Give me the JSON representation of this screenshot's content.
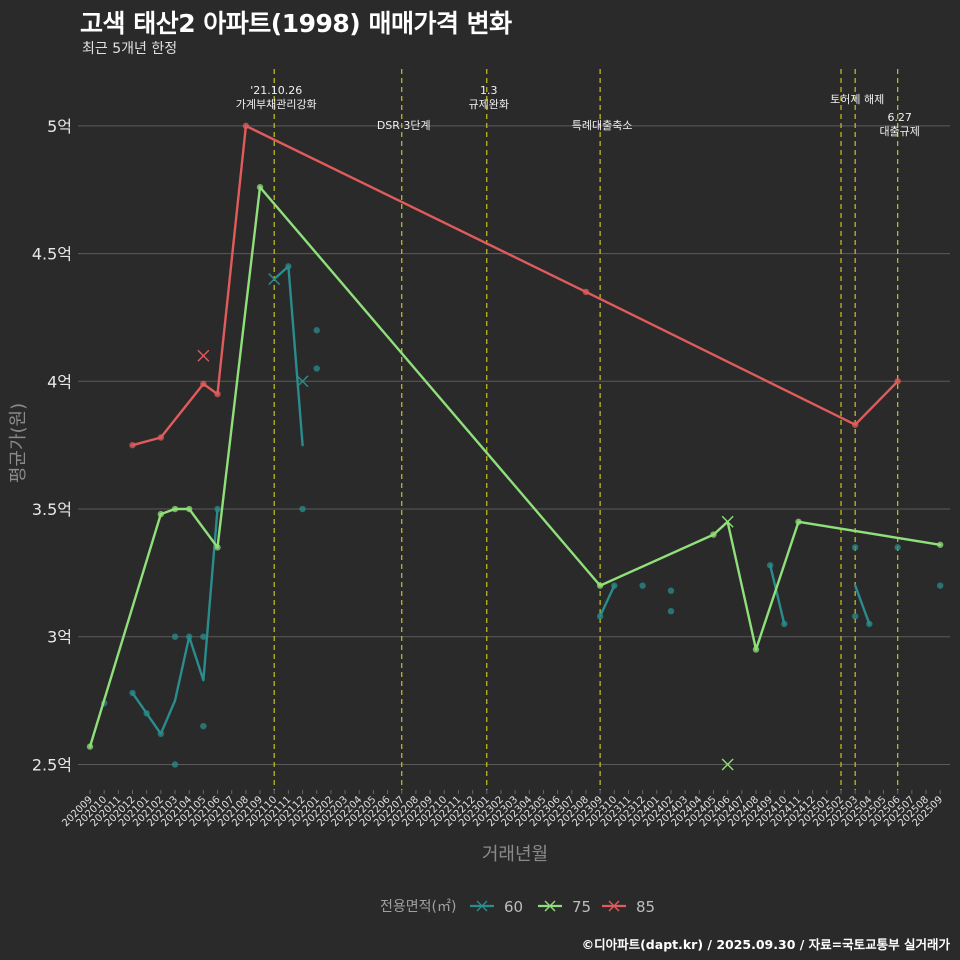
{
  "title": "고색 태산2 아파트(1998) 매매가격 변화",
  "subtitle": "최근 5개년 한정",
  "caption": "©디아파트(dapt.kr) / 2025.09.30 / 자료=국토교통부 실거래가",
  "chart_data": {
    "type": "line",
    "xlabel": "거래년월",
    "ylabel": "평균가(원)",
    "ylim": [
      2.4,
      5.25
    ],
    "yticks": [
      {
        "value": 2.5,
        "label": "2.5억"
      },
      {
        "value": 3.0,
        "label": "3억"
      },
      {
        "value": 3.5,
        "label": "3.5억"
      },
      {
        "value": 4.0,
        "label": "4억"
      },
      {
        "value": 4.5,
        "label": "4.5억"
      },
      {
        "value": 5.0,
        "label": "5억"
      }
    ],
    "categories": [
      "202009",
      "202010",
      "202011",
      "202012",
      "202101",
      "202102",
      "202103",
      "202104",
      "202105",
      "202106",
      "202107",
      "202108",
      "202109",
      "202110",
      "202111",
      "202112",
      "202201",
      "202202",
      "202203",
      "202204",
      "202205",
      "202206",
      "202207",
      "202208",
      "202209",
      "202210",
      "202211",
      "202212",
      "202301",
      "202302",
      "202303",
      "202304",
      "202305",
      "202306",
      "202307",
      "202308",
      "202309",
      "202310",
      "202311",
      "202312",
      "202401",
      "202402",
      "202403",
      "202404",
      "202405",
      "202406",
      "202407",
      "202408",
      "202409",
      "202410",
      "202411",
      "202412",
      "202501",
      "202502",
      "202503",
      "202504",
      "202505",
      "202506",
      "202507",
      "202508",
      "202509"
    ],
    "legend_title": "전용면적(㎡)",
    "series": [
      {
        "name": "60",
        "color": "#2a8c8c",
        "segments": [
          [
            [
              "202012",
              2.78
            ],
            [
              "202101",
              2.7
            ],
            [
              "202102",
              2.62
            ],
            [
              "202103",
              2.75
            ],
            [
              "202104",
              3.0
            ],
            [
              "202105",
              2.83
            ],
            [
              "202106",
              3.5
            ]
          ],
          [
            [
              "202110",
              4.4
            ],
            [
              "202111",
              4.45
            ],
            [
              "202112",
              3.75
            ]
          ],
          [
            [
              "202309",
              3.08
            ],
            [
              "202310",
              3.2
            ]
          ],
          [
            [
              "202409",
              3.28
            ],
            [
              "202410",
              3.05
            ]
          ],
          [
            [
              "202503",
              3.2
            ],
            [
              "202504",
              3.05
            ]
          ]
        ],
        "points": [
          [
            "202010",
            2.74
          ],
          [
            "202012",
            2.78
          ],
          [
            "202101",
            2.7
          ],
          [
            "202102",
            2.62
          ],
          [
            "202103",
            3.0
          ],
          [
            "202103",
            2.5
          ],
          [
            "202104",
            3.0
          ],
          [
            "202105",
            3.0
          ],
          [
            "202105",
            2.65
          ],
          [
            "202106",
            3.5
          ],
          [
            "202111",
            4.45
          ],
          [
            "202112",
            3.5
          ],
          [
            "202201",
            4.2
          ],
          [
            "202201",
            4.05
          ],
          [
            "202309",
            3.08
          ],
          [
            "202310",
            3.2
          ],
          [
            "202312",
            3.2
          ],
          [
            "202402",
            3.18
          ],
          [
            "202402",
            3.1
          ],
          [
            "202409",
            3.28
          ],
          [
            "202410",
            3.05
          ],
          [
            "202503",
            3.35
          ],
          [
            "202503",
            3.08
          ],
          [
            "202504",
            3.05
          ],
          [
            "202506",
            3.35
          ],
          [
            "202509",
            3.2
          ]
        ],
        "crosses": [
          [
            "202110",
            4.4
          ],
          [
            "202112",
            4.0
          ]
        ]
      },
      {
        "name": "75",
        "color": "#8fe07a",
        "segments": [
          [
            [
              "202009",
              2.57
            ],
            [
              "202102",
              3.48
            ],
            [
              "202103",
              3.5
            ],
            [
              "202104",
              3.5
            ],
            [
              "202106",
              3.35
            ],
            [
              "202109",
              4.76
            ],
            [
              "202309",
              3.2
            ],
            [
              "202405",
              3.4
            ],
            [
              "202406",
              3.45
            ],
            [
              "202408",
              2.95
            ],
            [
              "202411",
              3.45
            ],
            [
              "202509",
              3.36
            ]
          ]
        ],
        "points": [
          [
            "202009",
            2.57
          ],
          [
            "202102",
            3.48
          ],
          [
            "202103",
            3.5
          ],
          [
            "202104",
            3.5
          ],
          [
            "202106",
            3.35
          ],
          [
            "202109",
            4.76
          ],
          [
            "202309",
            3.2
          ],
          [
            "202405",
            3.4
          ],
          [
            "202408",
            2.95
          ],
          [
            "202411",
            3.45
          ],
          [
            "202509",
            3.36
          ]
        ],
        "crosses": [
          [
            "202406",
            3.45
          ],
          [
            "202406",
            2.5
          ]
        ]
      },
      {
        "name": "85",
        "color": "#e05c5c",
        "segments": [
          [
            [
              "202012",
              3.75
            ],
            [
              "202102",
              3.78
            ],
            [
              "202105",
              3.99
            ],
            [
              "202106",
              3.95
            ],
            [
              "202108",
              5.0
            ],
            [
              "202308",
              4.35
            ],
            [
              "202503",
              3.83
            ],
            [
              "202506",
              4.0
            ]
          ]
        ],
        "points": [
          [
            "202012",
            3.75
          ],
          [
            "202102",
            3.78
          ],
          [
            "202105",
            3.99
          ],
          [
            "202106",
            3.95
          ],
          [
            "202108",
            5.0
          ],
          [
            "202308",
            4.35
          ],
          [
            "202503",
            3.83
          ],
          [
            "202506",
            4.0
          ]
        ],
        "crosses": [
          [
            "202105",
            4.1
          ]
        ]
      }
    ],
    "events": [
      {
        "month": "202110",
        "lines": [
          "'21.10.26",
          "가계부채관리강화"
        ],
        "tier": 1
      },
      {
        "month": "202207",
        "lines": [
          "DSR 3단계"
        ],
        "tier": 3
      },
      {
        "month": "202301",
        "lines": [
          "1.3",
          "규제완화"
        ],
        "tier": 1
      },
      {
        "month": "202309",
        "lines": [
          "특례대출축소"
        ],
        "tier": 3
      },
      {
        "month": "202502",
        "lines": [],
        "tier": 2
      },
      {
        "month": "202503",
        "lines": [
          "토허제 해제"
        ],
        "tier": 2
      },
      {
        "month": "202506",
        "lines": [
          "6.27",
          "대출규제"
        ],
        "tier": 4
      }
    ]
  }
}
